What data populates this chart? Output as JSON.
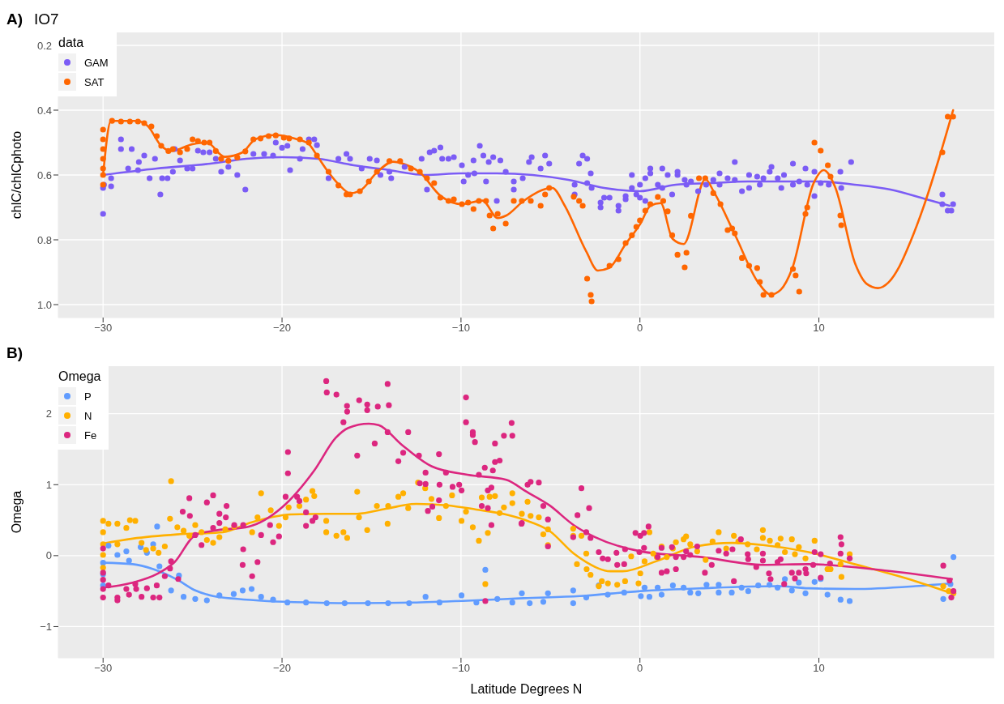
{
  "chart_data": [
    {
      "type": "scatter",
      "title": "IO7",
      "annotations": [
        "A)"
      ],
      "ylabel": "chlC/chlCphoto",
      "legend_title": "data",
      "legend": "top left",
      "grid": true,
      "marker": "circle",
      "xlim": [
        -32.5,
        19.8
      ],
      "xticks": [
        -30,
        -20,
        -10,
        0,
        10
      ],
      "ylim": [
        1.04,
        0.16
      ],
      "yticks": [
        0.2,
        0.4,
        0.6,
        0.8,
        {
          "value": 1,
          "label": "1.0"
        }
      ],
      "series": [
        {
          "name": "GAM",
          "color": "#7b5cf5",
          "x": [
            -30,
            -30,
            -29.95,
            -29.55,
            -29.55,
            -29,
            -29,
            -28.4,
            -28.6,
            -28.05,
            -28,
            -27.7,
            -27.4,
            -27.1,
            -26.8,
            -26.7,
            -26.4,
            -26.1,
            -26,
            -25.7,
            -25.3,
            -25,
            -24.7,
            -24.4,
            -24.05,
            -23.7,
            -23.4,
            -23,
            -22.5,
            -22.05,
            -21.6,
            -21,
            -20.5,
            -20.35,
            -20,
            -19.7,
            -19.55,
            -19,
            -18.85,
            -18.5,
            -18.2,
            -18.05,
            -17.4,
            -16.85,
            -16.4,
            -16.2,
            -15.55,
            -15.1,
            -14.7,
            -14.5,
            -14,
            -13.9,
            -13.15,
            -12.2,
            -11.9,
            -11.75,
            -11.5,
            -11.15,
            -11.05,
            -10.7,
            -10.4,
            -9.95,
            -9.85,
            -9.6,
            -9.3,
            -9.25,
            -8.95,
            -8.75,
            -8.6,
            -8.45,
            -8.2,
            -8,
            -7.8,
            -7.5,
            -7.05,
            -7.05,
            -6.55,
            -6.2,
            -6.05,
            -5.55,
            -5.3,
            -5.07,
            -3.65,
            -3.65,
            -3.4,
            -3.2,
            -2.95,
            -2.75,
            -2.95,
            -2.7,
            -2.2,
            -2.2,
            -2,
            -1.7,
            -1.2,
            -1.2,
            -0.8,
            -0.8,
            -0.45,
            -0.45,
            -0.2,
            0,
            0,
            0.3,
            0.3,
            0.58,
            0.58,
            1,
            1.25,
            1.25,
            1.55,
            1.8,
            2.1,
            2.1,
            2.5,
            2.6,
            2.85,
            3.25,
            3.7,
            4.1,
            4.45,
            4.45,
            4.9,
            5.3,
            5.3,
            5.7,
            6.1,
            6.1,
            6.55,
            6.7,
            6.9,
            7.25,
            7.35,
            7.7,
            7.9,
            8.05,
            8.55,
            8.55,
            8.9,
            9.25,
            9.35,
            9.75,
            9.75,
            10.1,
            10.55,
            11.2,
            11.25,
            11.8,
            16.9,
            16.9,
            17.2,
            17.5,
            17.4
          ],
          "values": [
            0.64,
            0.72,
            0.63,
            0.61,
            0.635,
            0.49,
            0.52,
            0.52,
            0.58,
            0.585,
            0.56,
            0.54,
            0.61,
            0.55,
            0.66,
            0.61,
            0.61,
            0.59,
            0.52,
            0.555,
            0.58,
            0.58,
            0.525,
            0.53,
            0.53,
            0.55,
            0.59,
            0.575,
            0.6,
            0.645,
            0.535,
            0.535,
            0.54,
            0.5,
            0.516,
            0.51,
            0.585,
            0.55,
            0.52,
            0.49,
            0.49,
            0.508,
            0.61,
            0.55,
            0.535,
            0.55,
            0.58,
            0.55,
            0.555,
            0.6,
            0.59,
            0.61,
            0.575,
            0.55,
            0.645,
            0.53,
            0.525,
            0.515,
            0.55,
            0.55,
            0.545,
            0.57,
            0.62,
            0.6,
            0.555,
            0.595,
            0.51,
            0.54,
            0.62,
            0.56,
            0.545,
            0.68,
            0.555,
            0.59,
            0.62,
            0.645,
            0.61,
            0.56,
            0.545,
            0.58,
            0.54,
            0.565,
            0.63,
            0.66,
            0.565,
            0.54,
            0.55,
            0.595,
            0.625,
            0.64,
            0.685,
            0.7,
            0.67,
            0.67,
            0.695,
            0.71,
            0.675,
            0.665,
            0.6,
            0.64,
            0.66,
            0.67,
            0.63,
            0.61,
            0.68,
            0.58,
            0.595,
            0.63,
            0.64,
            0.58,
            0.6,
            0.66,
            0.59,
            0.6,
            0.615,
            0.63,
            0.62,
            0.65,
            0.63,
            0.615,
            0.595,
            0.63,
            0.61,
            0.56,
            0.615,
            0.65,
            0.6,
            0.64,
            0.605,
            0.63,
            0.61,
            0.59,
            0.575,
            0.61,
            0.64,
            0.6,
            0.565,
            0.63,
            0.62,
            0.58,
            0.63,
            0.59,
            0.665,
            0.625,
            0.63,
            0.59,
            0.64,
            0.56,
            0.66,
            0.69,
            0.71,
            0.69,
            0.71
          ]
        },
        {
          "type": "line",
          "marker": "none",
          "color": "#7b5cf5",
          "x": [
            -30,
            -27,
            -24,
            -22,
            -20,
            -18,
            -16,
            -14,
            -12,
            -10,
            -8,
            -6,
            -4,
            -2,
            0,
            2,
            4,
            6,
            8,
            10,
            12,
            14,
            16,
            17.3
          ],
          "values": [
            0.6,
            0.58,
            0.565,
            0.55,
            0.545,
            0.55,
            0.57,
            0.585,
            0.6,
            0.595,
            0.595,
            0.6,
            0.615,
            0.64,
            0.65,
            0.63,
            0.625,
            0.62,
            0.62,
            0.62,
            0.63,
            0.645,
            0.675,
            0.695
          ]
        },
        {
          "name": "SAT",
          "color": "#ff6600",
          "x": [
            -30,
            -30,
            -30,
            -30,
            -30,
            -30,
            -30,
            -29.5,
            -29,
            -28.5,
            -28.05,
            -27.7,
            -27.3,
            -27,
            -26.75,
            -26.35,
            -26.1,
            -25.7,
            -25.3,
            -25,
            -24.7,
            -24.35,
            -24.05,
            -23.7,
            -23.4,
            -23,
            -22.5,
            -22.05,
            -21.6,
            -21.2,
            -20.75,
            -20.35,
            -19.9,
            -19.6,
            -19,
            -18.5,
            -18.05,
            -17.4,
            -16.85,
            -16.4,
            -16.2,
            -15.65,
            -15.15,
            -14.7,
            -14,
            -13.4,
            -12.8,
            -12.3,
            -11.9,
            -11.5,
            -11.15,
            -10.7,
            -10.4,
            -9.95,
            -9.6,
            -9.3,
            -9,
            -8.6,
            -8.4,
            -8.2,
            -7.95,
            -7.5,
            -7.05,
            -6.6,
            -6.1,
            -5.55,
            -5.3,
            -5.07,
            -3.7,
            -3.4,
            -3.2,
            -2.95,
            -2.75,
            -2.7,
            -1.7,
            -1.2,
            -0.8,
            -0.45,
            -0.2,
            0,
            0.3,
            0.58,
            1,
            1.3,
            1.55,
            1.8,
            2.1,
            2.5,
            2.6,
            2.85,
            3.3,
            3.65,
            4.1,
            4.5,
            4.9,
            5.15,
            5.3,
            5.7,
            6.1,
            6.55,
            6.7,
            6.9,
            7.35,
            8.55,
            8.7,
            8.9,
            9.25,
            9.35,
            9.75,
            10.1,
            10.5,
            10.65,
            11.2,
            11.25,
            16.9,
            17.2,
            17.5
          ],
          "values": [
            0.46,
            0.49,
            0.52,
            0.55,
            0.58,
            0.6,
            0.63,
            0.433,
            0.435,
            0.435,
            0.435,
            0.44,
            0.45,
            0.48,
            0.51,
            0.526,
            0.52,
            0.53,
            0.52,
            0.49,
            0.495,
            0.5,
            0.5,
            0.526,
            0.55,
            0.556,
            0.546,
            0.527,
            0.49,
            0.487,
            0.48,
            0.478,
            0.485,
            0.487,
            0.49,
            0.5,
            0.54,
            0.59,
            0.632,
            0.66,
            0.66,
            0.65,
            0.62,
            0.59,
            0.557,
            0.557,
            0.58,
            0.59,
            0.61,
            0.625,
            0.67,
            0.68,
            0.675,
            0.69,
            0.685,
            0.705,
            0.68,
            0.68,
            0.725,
            0.765,
            0.72,
            0.75,
            0.68,
            0.68,
            0.68,
            0.695,
            0.66,
            0.64,
            0.667,
            0.68,
            0.695,
            0.92,
            0.97,
            0.99,
            0.88,
            0.86,
            0.81,
            0.786,
            0.76,
            0.74,
            0.71,
            0.69,
            0.668,
            0.68,
            0.712,
            0.786,
            0.846,
            0.885,
            0.84,
            0.726,
            0.61,
            0.61,
            0.656,
            0.69,
            0.77,
            0.765,
            0.78,
            0.856,
            0.88,
            0.887,
            0.93,
            0.97,
            0.97,
            0.89,
            0.91,
            0.96,
            0.72,
            0.7,
            0.5,
            0.525,
            0.57,
            0.605,
            0.725,
            0.755,
            0.53,
            0.42,
            0.42
          ]
        },
        {
          "type": "line",
          "marker": "none",
          "color": "#ff6600",
          "x": [
            -30,
            -29.56,
            -28.1,
            -27.5,
            -26.75,
            -26.2,
            -25,
            -24.2,
            -23.2,
            -22.2,
            -21.5,
            -20.4,
            -19.15,
            -18.5,
            -18,
            -17.4,
            -16.8,
            -16.2,
            -15.65,
            -14.7,
            -13.8,
            -13.15,
            -12.3,
            -11.15,
            -9.95,
            -8.8,
            -7.95,
            -7.47,
            -6.5,
            -4.9,
            -4.2,
            -3,
            -2.35,
            -1.73,
            -0.8,
            0.04,
            0.58,
            1.16,
            1.82,
            2.44,
            3.66,
            4.13,
            5.33,
            6.6,
            7.3,
            7.87,
            8.5,
            9.7,
            10.27,
            10.9,
            12.05,
            12.67,
            13.3,
            13.9,
            14.5,
            15.1,
            15.9,
            16.76,
            17.5
          ],
          "values": [
            0.6,
            0.433,
            0.433,
            0.449,
            0.51,
            0.526,
            0.505,
            0.5,
            0.544,
            0.53,
            0.49,
            0.477,
            0.49,
            0.505,
            0.544,
            0.592,
            0.631,
            0.656,
            0.649,
            0.592,
            0.559,
            0.567,
            0.592,
            0.664,
            0.69,
            0.679,
            0.733,
            0.725,
            0.68,
            0.64,
            0.695,
            0.836,
            0.895,
            0.887,
            0.813,
            0.749,
            0.695,
            0.687,
            0.797,
            0.813,
            0.613,
            0.652,
            0.787,
            0.931,
            0.969,
            0.954,
            0.89,
            0.626,
            0.585,
            0.636,
            0.877,
            0.936,
            0.949,
            0.931,
            0.882,
            0.808,
            0.69,
            0.54,
            0.4
          ]
        }
      ]
    },
    {
      "type": "scatter",
      "annotations": [
        "B)"
      ],
      "xlabel": "Latitude Degrees N",
      "ylabel": "Omega",
      "legend_title": "Omega",
      "legend": "top left",
      "grid": true,
      "marker": "circle",
      "xlim": [
        -32.5,
        19.8
      ],
      "xticks": [
        -30,
        -20,
        -10,
        0,
        10
      ],
      "ylim": [
        -1.44,
        2.67
      ],
      "yticks": [
        -1,
        0,
        1,
        2
      ],
      "series": [
        {
          "name": "P",
          "color": "#619cff",
          "x": [
            -30,
            -30,
            -30,
            -29.7,
            -29.2,
            -28.7,
            -28.55,
            -27.9,
            -27.55,
            -27.2,
            -26.98,
            -26.85,
            -26.2,
            -25.76,
            -25.5,
            -24.85,
            -24.2,
            -23.5,
            -22.7,
            -22.2,
            -21.7,
            -21.17,
            -20.5,
            -19.7,
            -18.66,
            -17.5,
            -16.5,
            -15.2,
            -14.07,
            -12.9,
            -11.98,
            -11.2,
            -9.97,
            -9.14,
            -8.64,
            -7.97,
            -7.13,
            -6.6,
            -6.16,
            -5.4,
            -5.14,
            -3.73,
            -3.73,
            -3,
            -2.3,
            -1.8,
            -0.88,
            0.05,
            0.26,
            0.53,
            0.99,
            1.21,
            1.84,
            2.44,
            2.81,
            3.26,
            3.72,
            4.4,
            4.4,
            5.13,
            5.68,
            6.05,
            6.61,
            7.24,
            7.69,
            8.1,
            8.49,
            8.88,
            9.25,
            9.76,
            10.1,
            10.48,
            11.21,
            11.72,
            16.95,
            17.35,
            17.52
          ],
          "values": [
            -0.1,
            -0.26,
            -0.42,
            0.14,
            0.01,
            0.06,
            -0.07,
            0.12,
            0.04,
            0.16,
            0.41,
            -0.15,
            -0.49,
            -0.28,
            -0.58,
            -0.61,
            -0.63,
            -0.56,
            -0.54,
            -0.49,
            -0.47,
            -0.58,
            -0.62,
            -0.66,
            -0.66,
            -0.67,
            -0.67,
            -0.67,
            -0.67,
            -0.67,
            -0.58,
            -0.66,
            -0.56,
            -0.66,
            -0.2,
            -0.61,
            -0.66,
            -0.53,
            -0.67,
            -0.65,
            -0.53,
            -0.49,
            -0.67,
            -0.59,
            -0.42,
            -0.55,
            -0.52,
            -0.57,
            -0.45,
            -0.58,
            -0.45,
            -0.55,
            -0.42,
            -0.45,
            -0.52,
            -0.53,
            -0.41,
            -0.41,
            -0.52,
            -0.52,
            -0.45,
            -0.5,
            -0.42,
            -0.41,
            -0.45,
            -0.33,
            -0.49,
            -0.38,
            -0.53,
            -0.37,
            -0.33,
            -0.55,
            -0.62,
            -0.64,
            -0.61,
            -0.4,
            -0.02
          ]
        },
        {
          "type": "line",
          "marker": "none",
          "color": "#619cff",
          "x": [
            -30,
            -28.35,
            -27.2,
            -25.85,
            -24.85,
            -23.85,
            -22.5,
            -20.8,
            -18.3,
            -15.8,
            -12.5,
            -9.15,
            -6.5,
            -3.35,
            0.05,
            3.46,
            7.72,
            9.42,
            11.98,
            15.4,
            17.43
          ],
          "values": [
            -0.1,
            -0.12,
            -0.19,
            -0.34,
            -0.49,
            -0.57,
            -0.61,
            -0.64,
            -0.66,
            -0.67,
            -0.66,
            -0.63,
            -0.6,
            -0.57,
            -0.5,
            -0.46,
            -0.43,
            -0.46,
            -0.47,
            -0.43,
            -0.39
          ]
        },
        {
          "name": "N",
          "color": "#ffb000",
          "x": [
            -30,
            -30,
            -30,
            -30,
            -30,
            -29.7,
            -29.2,
            -29.2,
            -28.7,
            -28.5,
            -28.2,
            -27.85,
            -27.6,
            -27.2,
            -26.9,
            -26.55,
            -26.2,
            -26.26,
            -25.85,
            -25.5,
            -25.18,
            -24.85,
            -24.5,
            -24.2,
            -23.85,
            -23.5,
            -23.17,
            -22.67,
            -21.67,
            -21.37,
            -21.17,
            -20.63,
            -20.17,
            -19.8,
            -19.63,
            -19.03,
            -18.66,
            -18.3,
            -18.2,
            -17.53,
            -17.53,
            -16.96,
            -16.57,
            -16.36,
            -15.8,
            -15.7,
            -15.24,
            -14.7,
            -14.1,
            -14.07,
            -13.5,
            -13.23,
            -12.95,
            -12.4,
            -12,
            -11.65,
            -11.23,
            -10.84,
            -10.5,
            -9.97,
            -9.72,
            -9.34,
            -9,
            -8.84,
            -8.5,
            -8.64,
            -8.4,
            -8.1,
            -7.84,
            -7.6,
            -7.13,
            -7.13,
            -6.6,
            -6.28,
            -6.11,
            -5.65,
            -5.4,
            -5.14,
            -5.14,
            -3.73,
            -3.73,
            -3.52,
            -3.27,
            -3,
            -2.98,
            -2.76,
            -2.3,
            -2.13,
            -1.79,
            -1.27,
            -0.83,
            -0.49,
            -0.08,
            0.02,
            0.26,
            0.53,
            0.74,
            0.94,
            1.21,
            1.5,
            1.84,
            2.01,
            2.44,
            2.58,
            2.81,
            3.2,
            3.67,
            4.06,
            4.4,
            4.82,
            5.25,
            5.5,
            6.02,
            6.53,
            6.87,
            6.87,
            7.26,
            7.69,
            7.86,
            8.1,
            8.49,
            8.66,
            8.88,
            9.25,
            9.76,
            10.48,
            10.65,
            11.21,
            11.26,
            11.72,
            16.95,
            17.26,
            17.52
          ],
          "values": [
            0.49,
            0.33,
            0.16,
            0.01,
            -0.17,
            0.45,
            0.45,
            0.16,
            0.39,
            0.5,
            0.49,
            0.18,
            0.08,
            0.1,
            0.04,
            0.13,
            1.05,
            0.52,
            0.4,
            0.35,
            0.28,
            0.43,
            0.33,
            0.22,
            0.18,
            0.26,
            0.37,
            0.41,
            0.33,
            0.54,
            0.88,
            0.64,
            0.42,
            0.54,
            0.68,
            0.7,
            0.79,
            0.91,
            0.84,
            0.49,
            0.33,
            0.28,
            0.33,
            0.25,
            0.9,
            0.54,
            0.36,
            0.7,
            0.45,
            0.7,
            0.83,
            0.88,
            0.67,
            1.03,
            0.95,
            0.8,
            0.53,
            0.7,
            0.85,
            0.49,
            0.62,
            0.4,
            0.21,
            0.82,
            0.32,
            -0.4,
            0.83,
            0.84,
            0.6,
            0.68,
            0.88,
            0.74,
            0.59,
            0.76,
            0.56,
            0.54,
            0.3,
            0.37,
            0.15,
            0.38,
            0.28,
            -0.12,
            0.28,
            0.03,
            -0.19,
            -0.27,
            -0.43,
            -0.36,
            -0.39,
            -0.41,
            -0.36,
            -0.01,
            -0.39,
            -0.25,
            -0.08,
            0.33,
            0.03,
            -0.02,
            0.13,
            -0.02,
            0.1,
            0.19,
            0.23,
            0.27,
            0.16,
            0.06,
            -0.06,
            0.2,
            0.33,
            0.1,
            0.28,
            0.2,
            0.16,
            0.09,
            0.36,
            0.25,
            0.21,
            0.15,
            0.24,
            0.05,
            0.23,
            0.02,
            0.12,
            -0.04,
            0.21,
            -0.19,
            -0.19,
            -0.12,
            -0.3,
            0.02,
            -0.43,
            -0.5,
            -0.53
          ]
        },
        {
          "type": "line",
          "marker": "none",
          "color": "#ffb000",
          "x": [
            -30,
            -28.35,
            -25.85,
            -23.3,
            -21.7,
            -19.5,
            -17.5,
            -15.8,
            -14.2,
            -12.5,
            -10.8,
            -9.15,
            -7.5,
            -6.4,
            -5.06,
            -3.7,
            -3,
            -1.65,
            -0.97,
            0.9,
            3.12,
            5.17,
            6.87,
            9.42,
            11.98,
            15.4,
            17.43
          ],
          "values": [
            0.17,
            0.24,
            0.3,
            0.33,
            0.47,
            0.58,
            0.59,
            0.59,
            0.66,
            0.73,
            0.71,
            0.65,
            0.58,
            0.5,
            0.35,
            0.03,
            -0.09,
            -0.22,
            -0.22,
            -0.08,
            0.13,
            0.18,
            0.15,
            0.05,
            -0.12,
            -0.36,
            -0.53
          ]
        },
        {
          "name": "Fe",
          "color": "#dc267f",
          "x": [
            -30,
            -30,
            -30,
            -30,
            -30,
            -29.7,
            -29.2,
            -29.2,
            -28.7,
            -28.55,
            -28.2,
            -28.15,
            -27.85,
            -27.55,
            -27.2,
            -27,
            -26.85,
            -26.55,
            -26.26,
            -26.2,
            -25.8,
            -25.55,
            -25.18,
            -25.15,
            -24.85,
            -24.5,
            -24.2,
            -23.85,
            -23.85,
            -23.5,
            -23.5,
            -23.14,
            -23.1,
            -22.67,
            -22.17,
            -22.17,
            -22.2,
            -21.67,
            -21.37,
            -21.17,
            -20.67,
            -20.5,
            -20.17,
            -19.8,
            -19.67,
            -19.67,
            -19.16,
            -19.03,
            -18.66,
            -18.66,
            -18.3,
            -18.13,
            -17.53,
            -17.5,
            -16.96,
            -16.57,
            -16.37,
            -16.36,
            -15.8,
            -15.69,
            -15.24,
            -15.24,
            -14.82,
            -14.65,
            -14.1,
            -14.03,
            -14.1,
            -13.5,
            -13.23,
            -12.95,
            -12.35,
            -11.98,
            -12.3,
            -11.98,
            -11.85,
            -11.6,
            -11.23,
            -11.2,
            -11.23,
            -10.84,
            -10.47,
            -10.1,
            -9.97,
            -9.72,
            -9.72,
            -9.34,
            -9.34,
            -9.22,
            -9,
            -8.84,
            -8.67,
            -8.64,
            -8.5,
            -8.5,
            -8.3,
            -8.22,
            -8.3,
            -8.1,
            -8.1,
            -7.84,
            -7.6,
            -7.17,
            -7.13,
            -6.6,
            -6.28,
            -6.11,
            -5.65,
            -6.62,
            -5.4,
            -5.14,
            -5.14,
            -3.73,
            -3.49,
            -3.27,
            -3,
            -2.84,
            -2.76,
            -2.3,
            -2.08,
            -1.79,
            -1.31,
            -1.27,
            -0.88,
            -0.83,
            -0.25,
            0.02,
            0.23,
            0.48,
            -0.03,
            0.23,
            0.99,
            1.21,
            1.21,
            1.5,
            1.79,
            2.01,
            2.01,
            2.44,
            2.58,
            2.81,
            3.2,
            3.63,
            4.01,
            4.4,
            4.82,
            5.17,
            5.25,
            5.64,
            6.02,
            6.05,
            6.5,
            6.87,
            6.87,
            7.21,
            7.3,
            7.69,
            7.86,
            8.06,
            8.49,
            8.66,
            8.88,
            9.25,
            9.29,
            9.68,
            9.76,
            10.1,
            10.1,
            10.62,
            11.21,
            11.26,
            11.21,
            11.72,
            16.95,
            17.3,
            17.52,
            17.4
          ],
          "values": [
            0.1,
            -0.24,
            -0.34,
            -0.47,
            -0.59,
            -0.42,
            -0.59,
            -0.63,
            -0.47,
            -0.55,
            -0.4,
            -0.47,
            -0.58,
            -0.46,
            -0.59,
            -0.42,
            -0.59,
            -0.29,
            -0.18,
            -0.08,
            -0.33,
            0.62,
            0.81,
            0.56,
            0.29,
            0.15,
            0.75,
            0.85,
            0.39,
            0.59,
            0.46,
            0.54,
            0.7,
            0.43,
            0.43,
            0.09,
            -0.13,
            -0.29,
            -0.09,
            0.29,
            0.43,
            0.19,
            0.27,
            0.83,
            1.46,
            1.16,
            0.83,
            0.77,
            0.61,
            0.42,
            0.49,
            0.54,
            2.46,
            2.3,
            2.27,
            1.88,
            2.11,
            2.03,
            1.41,
            2.19,
            2.13,
            2.05,
            1.58,
            2.1,
            2.42,
            2.12,
            1.74,
            1.33,
            1.45,
            1.74,
            1.41,
            1.17,
            1.02,
            1.01,
            0.63,
            0.69,
            1.43,
            1,
            0.78,
            1.17,
            0.97,
            1,
            0.92,
            2.23,
            1.88,
            1.74,
            1.7,
            1.6,
            1.14,
            0.7,
            1.24,
            -0.64,
            0.92,
            0.67,
            0.96,
            1.2,
            0.43,
            1.32,
            1.58,
            1.34,
            1.69,
            1.87,
            1.69,
            0.46,
            1,
            1.04,
            1.03,
            0.45,
            0.7,
            0.51,
            0.13,
            0.26,
            0.57,
            0.95,
            0.33,
            0.67,
            0.25,
            0.05,
            -0.04,
            -0.05,
            0.04,
            -0.13,
            -0.12,
            0.09,
            0.32,
            0.28,
            0.32,
            0.41,
            0.05,
            0.11,
            -0.02,
            0.11,
            -0.24,
            -0.22,
            0.12,
            -0.02,
            -0.19,
            -0.02,
            0.06,
            0.01,
            0.13,
            -0.24,
            -0.13,
            0.07,
            0.03,
            0.09,
            -0.36,
            0.23,
            0.02,
            -0.05,
            -0.16,
            0.03,
            -0.07,
            -0.25,
            -0.33,
            -0.09,
            -0.05,
            -0.4,
            -0.24,
            -0.32,
            -0.24,
            -0.19,
            -0.25,
            -0.13,
            0.05,
            0.02,
            -0.31,
            -0.11,
            0.26,
            0.16,
            0.03,
            -0.04,
            -0.14,
            -0.35,
            -0.5,
            -0.59
          ]
        },
        {
          "type": "line",
          "marker": "none",
          "color": "#dc267f",
          "x": [
            -30,
            -28.35,
            -27,
            -26,
            -24.85,
            -23.85,
            -21.85,
            -20,
            -18.2,
            -17,
            -16.3,
            -15.15,
            -14.6,
            -13.3,
            -11.65,
            -9.64,
            -7.47,
            -6.4,
            -5.06,
            -3.7,
            -2.5,
            0.05,
            3.46,
            6.87,
            9.42,
            13.68,
            17.43
          ],
          "values": [
            -0.45,
            -0.38,
            -0.26,
            -0.09,
            0.29,
            0.35,
            0.41,
            0.68,
            1.2,
            1.66,
            1.8,
            1.86,
            1.84,
            1.56,
            1.26,
            1.14,
            1.07,
            0.91,
            0.71,
            0.43,
            0.26,
            0.06,
            -0.02,
            -0.13,
            -0.12,
            -0.21,
            -0.33
          ]
        }
      ]
    }
  ]
}
